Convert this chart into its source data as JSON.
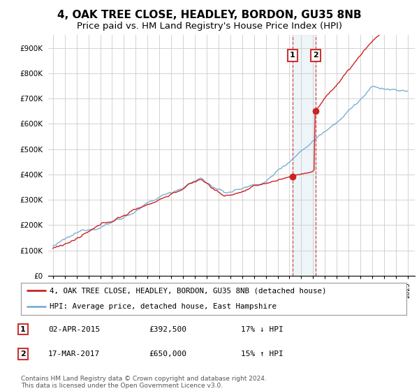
{
  "title": "4, OAK TREE CLOSE, HEADLEY, BORDON, GU35 8NB",
  "subtitle": "Price paid vs. HM Land Registry's House Price Index (HPI)",
  "ylim": [
    0,
    950000
  ],
  "yticks": [
    0,
    100000,
    200000,
    300000,
    400000,
    500000,
    600000,
    700000,
    800000,
    900000
  ],
  "yticklabels": [
    "£0",
    "£100K",
    "£200K",
    "£300K",
    "£400K",
    "£500K",
    "£600K",
    "£700K",
    "£800K",
    "£900K"
  ],
  "hpi_color": "#7ab0d4",
  "price_color": "#cc2222",
  "marker_color": "#cc2222",
  "t1_year": 2015.25,
  "t1_price": 392500,
  "t2_year": 2017.2,
  "t2_price": 650000,
  "legend_label_red": "4, OAK TREE CLOSE, HEADLEY, BORDON, GU35 8NB (detached house)",
  "legend_label_blue": "HPI: Average price, detached house, East Hampshire",
  "table_row1": [
    "1",
    "02-APR-2015",
    "£392,500",
    "17% ↓ HPI"
  ],
  "table_row2": [
    "2",
    "17-MAR-2017",
    "£650,000",
    "15% ↑ HPI"
  ],
  "footnote": "Contains HM Land Registry data © Crown copyright and database right 2024.\nThis data is licensed under the Open Government Licence v3.0.",
  "background_color": "#ffffff",
  "grid_color": "#cccccc",
  "title_fontsize": 11,
  "subtitle_fontsize": 9.5
}
